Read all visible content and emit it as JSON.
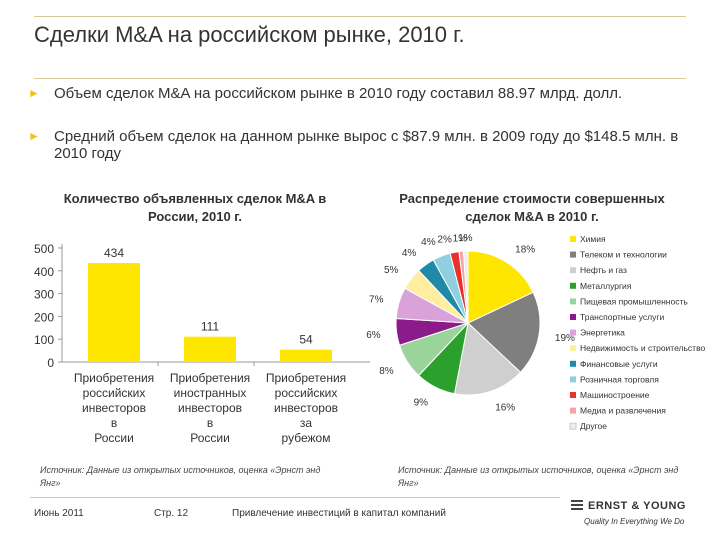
{
  "title": "Сделки M&A на российском рынке, 2010 г.",
  "bullets": [
    "Объем сделок M&A на российском рынке в 2010 году составил 88.97 млрд. долл.",
    "Средний объем сделок на данном рынке вырос с $87.9 млн. в 2009 году до $148.5 млн. в 2010 году"
  ],
  "colors": {
    "bar": "#ffe600",
    "accent": "#f0c419",
    "rule": "#d8c79a"
  },
  "chart_data": [
    {
      "type": "bar",
      "title": "Количество объявленных сделок M&A в России, 2010 г.",
      "categories": [
        "Приобретения российских инвесторов в России",
        "Приобретения иностранных инвесторов в России",
        "Приобретения российских инвесторов за рубежом"
      ],
      "values": [
        434,
        111,
        54
      ],
      "value_labels": [
        "434",
        "111",
        "54"
      ],
      "ylim": [
        0,
        500
      ],
      "yticks": [
        0,
        100,
        200,
        300,
        400,
        500
      ],
      "ytick_labels": [
        "0",
        "100",
        "200",
        "300",
        "400",
        "500"
      ],
      "grid": false,
      "source": "Источник: Данные из открытых источников, оценка «Эрнст энд Янг»"
    },
    {
      "type": "pie",
      "title": "Распределение стоимости совершенных сделок M&A в 2010 г.",
      "legend_position": "right",
      "slices": [
        {
          "label": "Химия",
          "value": 18,
          "pct_label": "18%",
          "color": "#ffe600"
        },
        {
          "label": "Телеком и технологии",
          "value": 19,
          "pct_label": "19%",
          "color": "#7f7f7f"
        },
        {
          "label": "Нефть и газ",
          "value": 16,
          "pct_label": "16%",
          "color": "#cfcfcf"
        },
        {
          "label": "Металлургия",
          "value": 9,
          "pct_label": "9%",
          "color": "#2ca02c"
        },
        {
          "label": "Пищевая промышленность",
          "value": 8,
          "pct_label": "8%",
          "color": "#9bd49b"
        },
        {
          "label": "Транспортные услуги",
          "value": 6,
          "pct_label": "6%",
          "color": "#8b1a8b"
        },
        {
          "label": "Энергетика",
          "value": 7,
          "pct_label": "7%",
          "color": "#d9a3d9"
        },
        {
          "label": "Недвижимость и строительство",
          "value": 5,
          "pct_label": "5%",
          "color": "#ffeea0"
        },
        {
          "label": "Финансовые услуги",
          "value": 4,
          "pct_label": "4%",
          "color": "#1f8aa8"
        },
        {
          "label": "Розничная торговля",
          "value": 4,
          "pct_label": "4%",
          "color": "#8ed0e0"
        },
        {
          "label": "Машиностроение",
          "value": 2,
          "pct_label": "2%",
          "color": "#e8312e"
        },
        {
          "label": "Медиа и развлечения",
          "value": 1,
          "pct_label": "1%",
          "color": "#f5a3a3"
        },
        {
          "label": "Другое",
          "value": 1,
          "pct_label": "1%",
          "color": "#ededed"
        }
      ],
      "source": "Источник: Данные из открытых источников, оценка «Эрнст энд Янг»"
    }
  ],
  "footer": {
    "date": "Июнь 2011",
    "page": "Стр. 12",
    "subject": "Привлечение инвестиций в капитал компаний"
  },
  "logo": {
    "name": "ERNST & YOUNG",
    "tagline": "Quality In Everything We Do"
  }
}
